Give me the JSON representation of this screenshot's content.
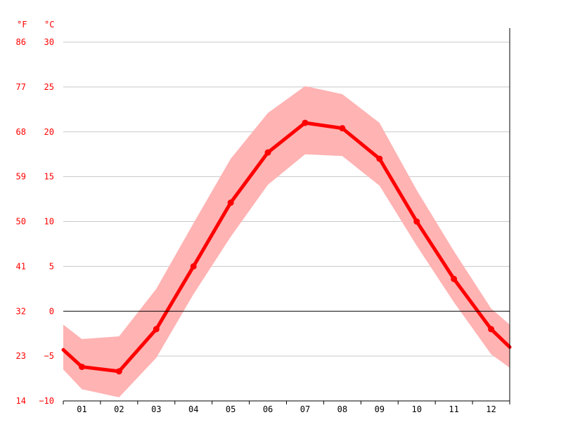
{
  "chart_data": {
    "type": "line",
    "title": "",
    "xlabel": "",
    "ylabel": "",
    "unit_left": "°F",
    "unit_right": "°C",
    "categories": [
      "01",
      "02",
      "03",
      "04",
      "05",
      "06",
      "07",
      "08",
      "09",
      "10",
      "11",
      "12"
    ],
    "y_ticks_c": [
      "30",
      "25",
      "20",
      "15",
      "10",
      "5",
      "0",
      "−5",
      "−10"
    ],
    "y_ticks_f": [
      "86",
      "77",
      "68",
      "59",
      "50",
      "41",
      "32",
      "23",
      "14"
    ],
    "ylim": [
      -10,
      30
    ],
    "grid": true,
    "series": [
      {
        "values": [
          -6.2,
          -6.7,
          -2.0,
          5.0,
          12.1,
          17.7,
          21.0,
          20.4,
          17.0,
          10.0,
          3.6,
          -2.0
        ],
        "color": "#ff0000"
      }
    ],
    "band": {
      "color": "#ffb3b3",
      "upper": [
        -3.1,
        -2.8,
        2.5,
        9.8,
        17.0,
        22.1,
        25.1,
        24.2,
        21.0,
        13.5,
        6.7,
        0.3
      ],
      "lower": [
        -8.7,
        -9.6,
        -5.2,
        1.9,
        8.3,
        14.1,
        17.5,
        17.3,
        14.0,
        7.3,
        1.0,
        -4.8
      ]
    },
    "edge_values": {
      "start": {
        "value": -4.3,
        "upper": -1.5,
        "lower": -6.5
      },
      "end": {
        "value": -4.0,
        "upper": -1.5,
        "lower": -6.3
      }
    }
  }
}
